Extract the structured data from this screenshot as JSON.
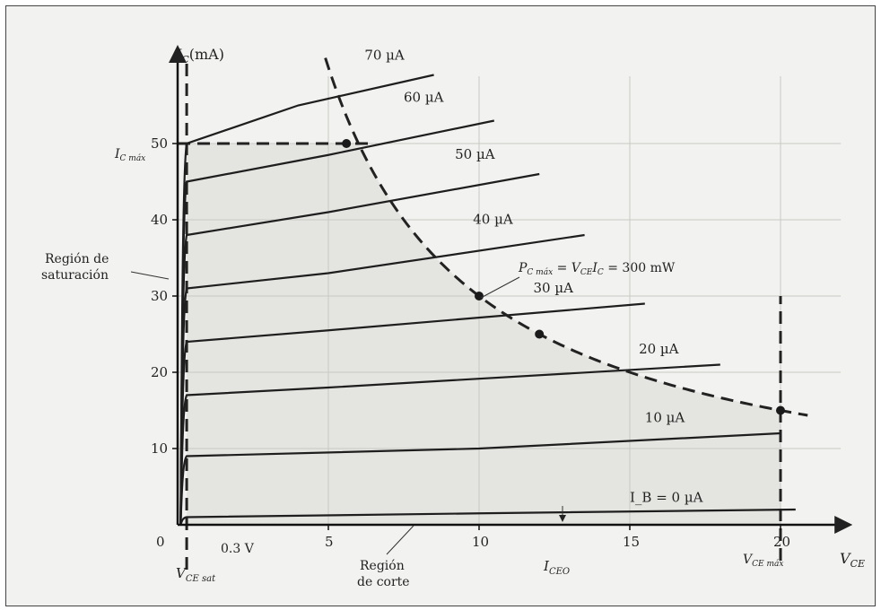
{
  "chart_data": {
    "type": "line",
    "title": "",
    "xlabel": "V_CE",
    "ylabel": "I_C (mA)",
    "xlim": [
      0,
      22
    ],
    "ylim": [
      0,
      60
    ],
    "x_ticks": [
      0,
      5,
      10,
      15,
      20
    ],
    "y_ticks": [
      10,
      20,
      30,
      40,
      50
    ],
    "grid": true,
    "series": [
      {
        "name": "70 µA",
        "points": [
          [
            0.3,
            50
          ],
          [
            4,
            55
          ],
          [
            8.5,
            59
          ]
        ]
      },
      {
        "name": "60 µA",
        "points": [
          [
            0.3,
            45
          ],
          [
            5,
            48.5
          ],
          [
            10.5,
            53
          ]
        ]
      },
      {
        "name": "50 µA",
        "points": [
          [
            0.3,
            38
          ],
          [
            5,
            41
          ],
          [
            12,
            46
          ]
        ]
      },
      {
        "name": "40 µA",
        "points": [
          [
            0.3,
            31
          ],
          [
            5,
            33
          ],
          [
            13.5,
            38
          ]
        ]
      },
      {
        "name": "30 µA",
        "points": [
          [
            0.3,
            24
          ],
          [
            5,
            25.5
          ],
          [
            15.5,
            29
          ]
        ]
      },
      {
        "name": "20 µA",
        "points": [
          [
            0.3,
            17
          ],
          [
            5,
            18
          ],
          [
            18,
            21
          ]
        ]
      },
      {
        "name": "10 µA",
        "points": [
          [
            0.3,
            9
          ],
          [
            10,
            10
          ],
          [
            20,
            12
          ]
        ]
      },
      {
        "name": "I_B = 0 µA",
        "points": [
          [
            0.3,
            1
          ],
          [
            10,
            1.5
          ],
          [
            20.5,
            2
          ]
        ]
      }
    ],
    "power_curve": {
      "name": "P_C máx = V_CE I_C = 300 mW",
      "power_mW": 300,
      "x_start": 4.9,
      "x_end": 21
    },
    "marked_points": [
      [
        5.6,
        50
      ],
      [
        10,
        30
      ],
      [
        12,
        25
      ],
      [
        20,
        15
      ]
    ],
    "limits": {
      "ic_max": 50,
      "vce_max": 20,
      "vce_sat": 0.3
    }
  },
  "labels": {
    "y_axis": "I",
    "y_axis_sub": "C",
    "y_axis_unit": "(mA)",
    "x_axis": "V",
    "x_axis_sub": "CE",
    "ic_max": "I",
    "ic_max_sub": "C máx",
    "vce_sat": "V",
    "vce_sat_sub": "CE sat",
    "vce_sat_value": "0.3 V",
    "iceo": "I",
    "iceo_sub": "CEO",
    "vce_max": "V",
    "vce_max_sub": "CE máx",
    "saturation_line1": "Región de",
    "saturation_line2": "saturación",
    "cutoff_line1": "Región",
    "cutoff_line2": "de corte",
    "power_p": "P",
    "power_sub": "C máx",
    "power_eq": " = V",
    "power_eq_sub": "CE",
    "power_tail": "I",
    "power_tail_sub": "C",
    "power_value": " = 300 mW",
    "origin": "0"
  }
}
